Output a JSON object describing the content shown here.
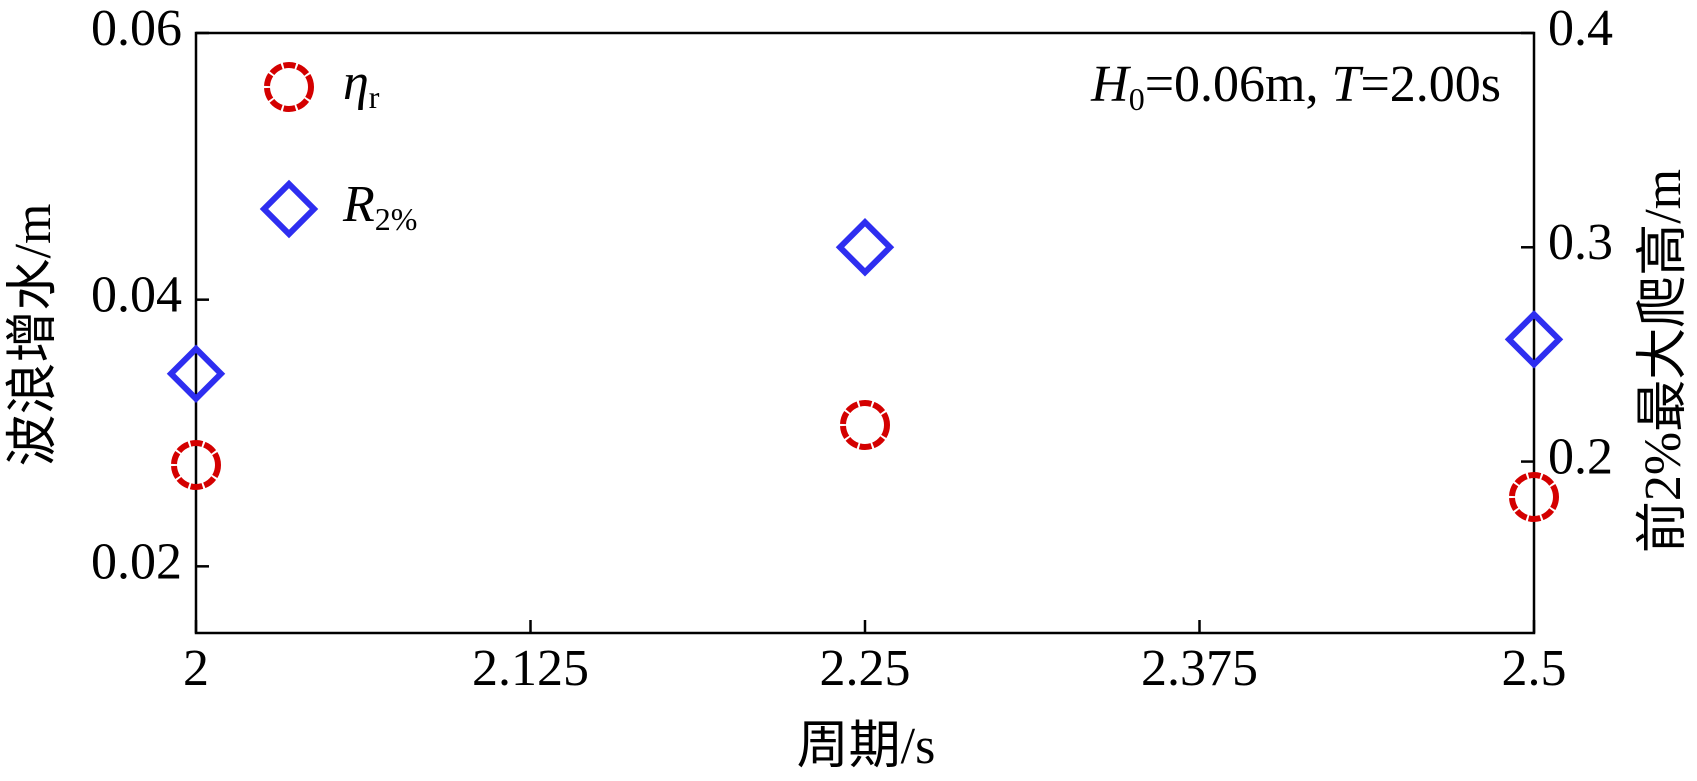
{
  "chart_data": {
    "type": "scatter",
    "x_label": "周期/s",
    "y_label": "波浪增水/m",
    "y2_label": "前2%最大爬高/m",
    "annotation_parts": [
      "H",
      "0",
      "=0.06m, ",
      "T",
      "=2.00s"
    ],
    "x": [
      2,
      2.25,
      2.5
    ],
    "series": [
      {
        "name": "η",
        "name_sub": "r",
        "color": "#d40000",
        "marker": "circle",
        "values": [
          0.0276,
          0.0306,
          0.0252
        ]
      },
      {
        "name": "R",
        "name_sub": "2%",
        "color": "#2e2ef0",
        "marker": "diamond",
        "axis": "y2",
        "values": [
          0.241,
          0.3,
          0.257
        ]
      }
    ],
    "xlim": [
      2,
      2.5
    ],
    "xticks": [
      2,
      2.125,
      2.25,
      2.375,
      2.5
    ],
    "ylim": [
      0.015,
      0.06
    ],
    "yticks": [
      0.02,
      0.04,
      0.06
    ],
    "y2lim": [
      0.12,
      0.4
    ],
    "y2ticks": [
      0.2,
      0.3,
      0.4
    ],
    "legend": "upper left"
  }
}
